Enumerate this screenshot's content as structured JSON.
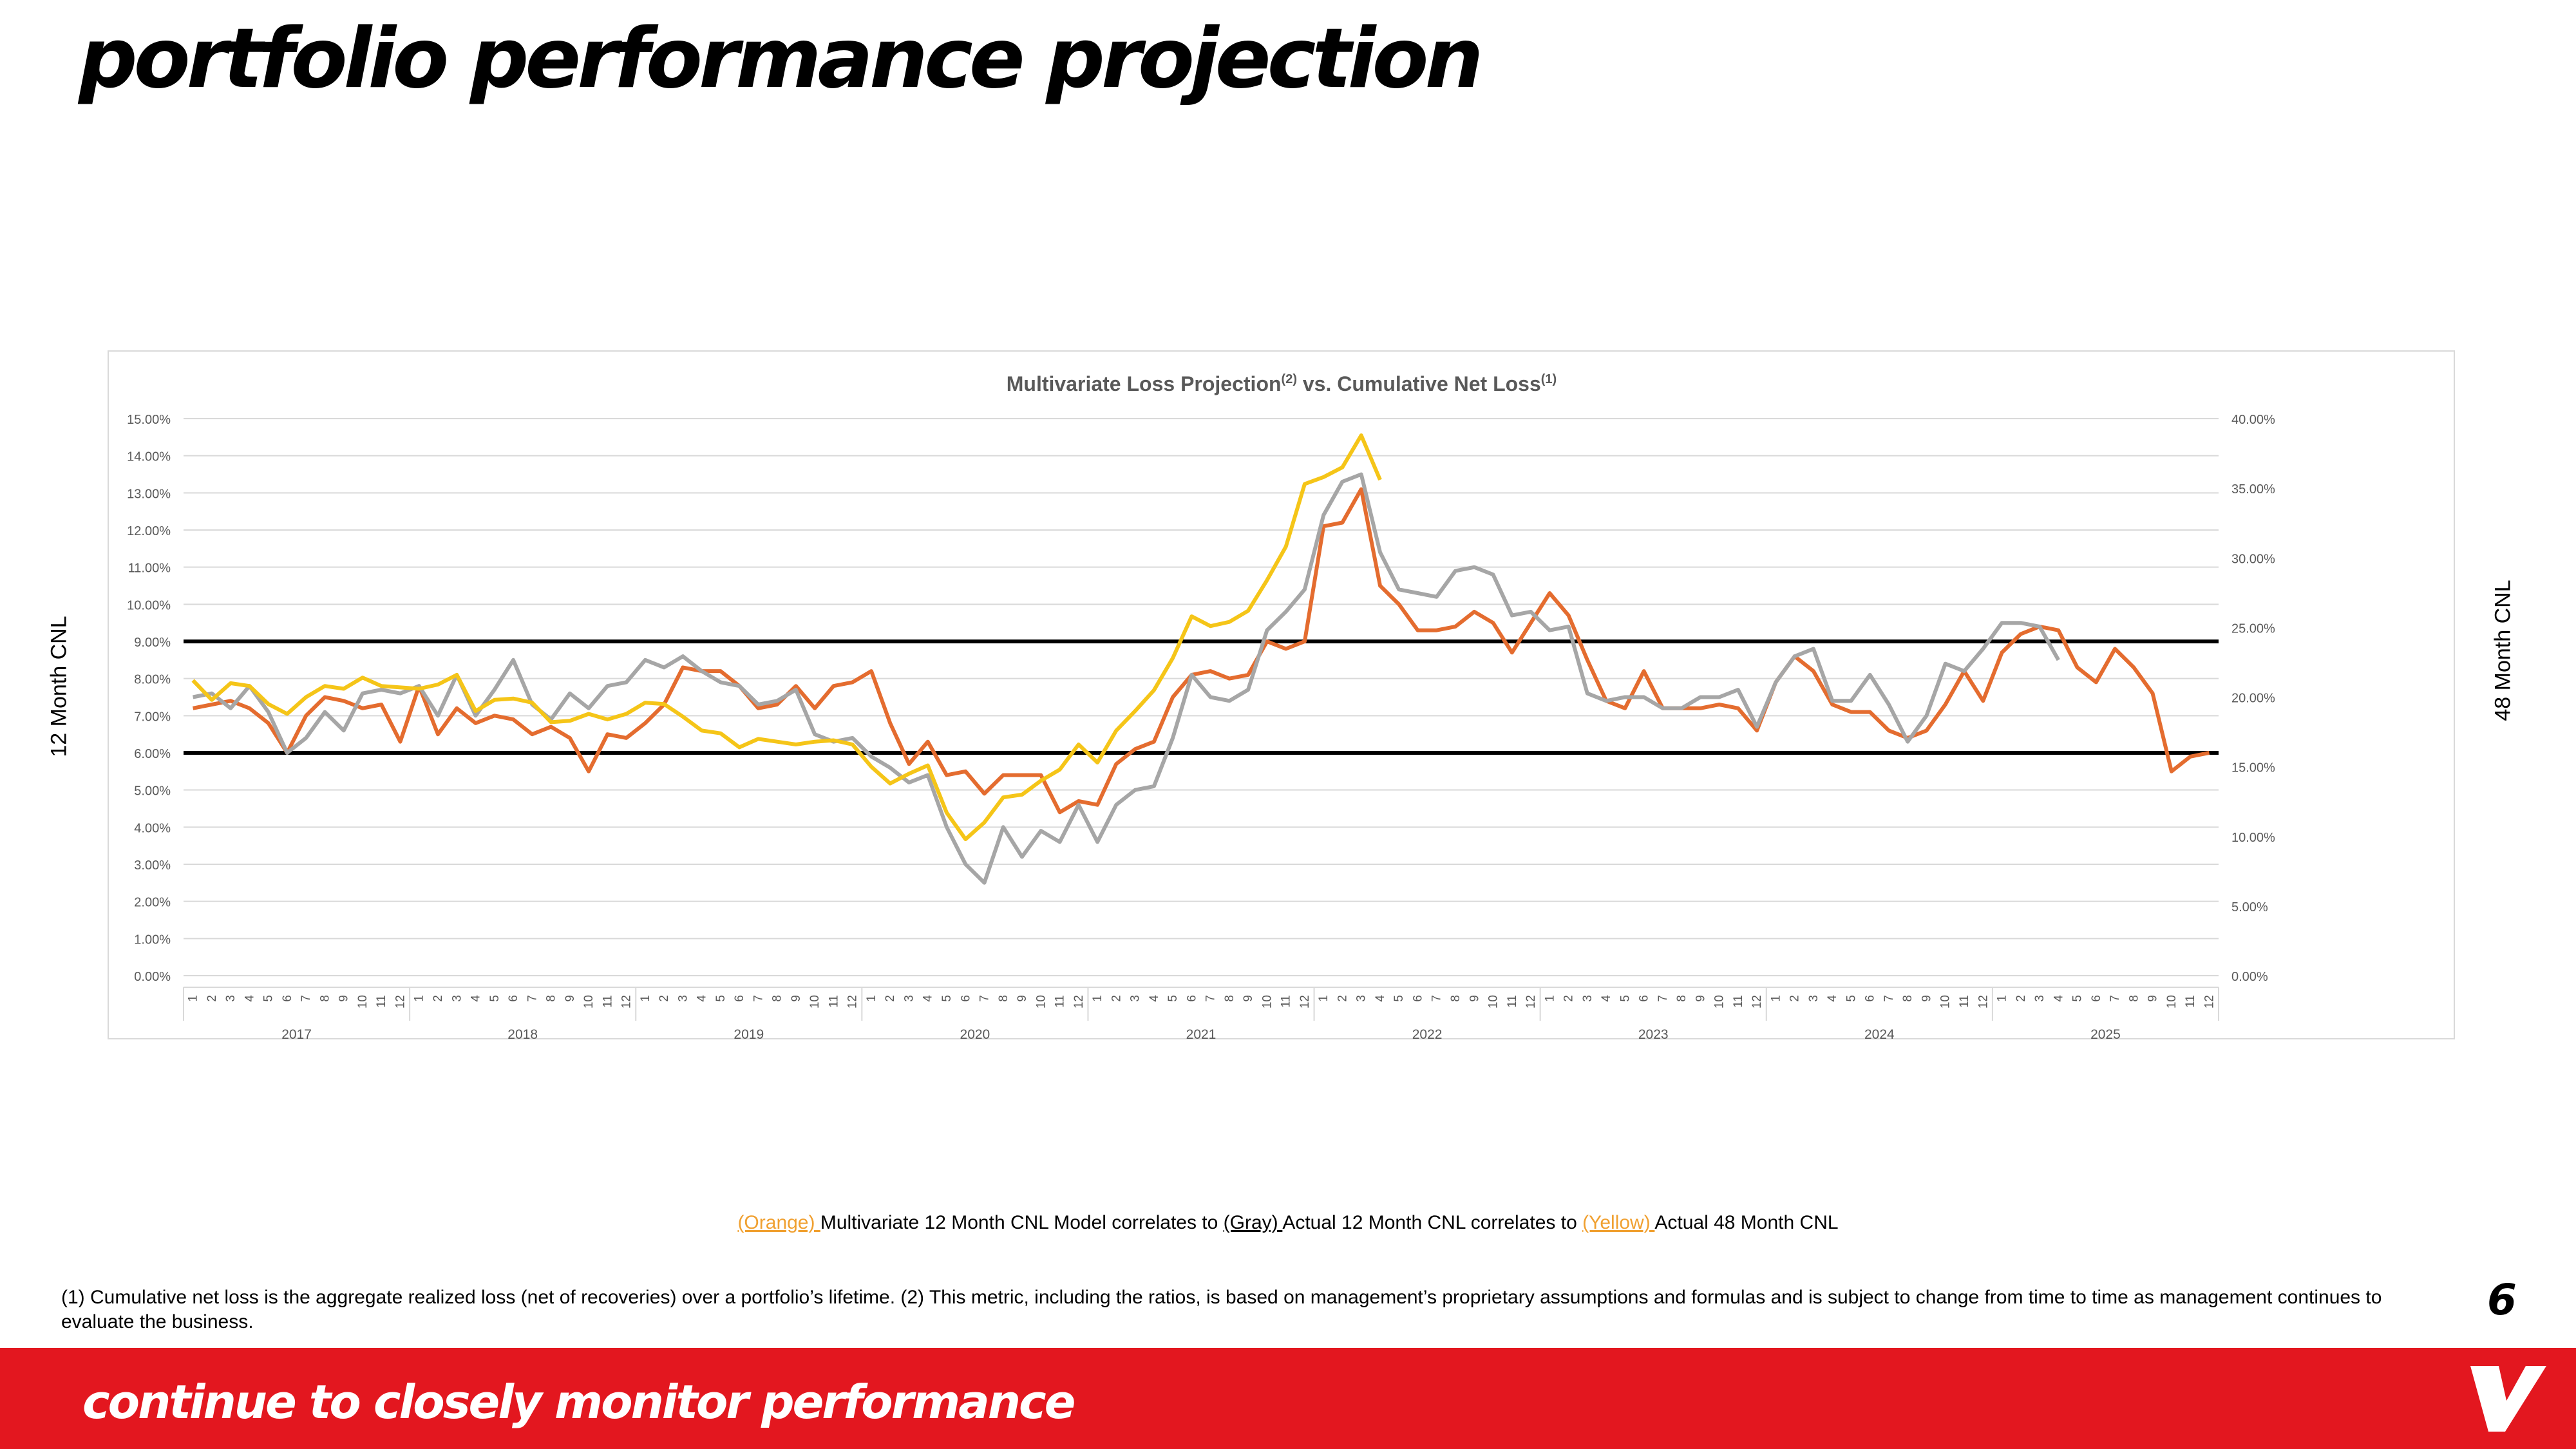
{
  "slide": {
    "title": "portfolio performance projection",
    "left_axis_label": "12 Month CNL",
    "right_axis_label": "48 Month CNL",
    "page_number": "6"
  },
  "legend": {
    "orange_key": "(Orange) ",
    "orange_text": "Multivariate 12 Month CNL Model correlates to ",
    "gray_key": "(Gray) ",
    "gray_text": "Actual 12 Month CNL correlates to ",
    "yellow_key": "(Yellow) ",
    "yellow_text": "Actual 48 Month CNL"
  },
  "footnote": "(1) Cumulative net loss is the aggregate realized loss (net of recoveries) over a portfolio’s lifetime. (2) This metric, including the ratios, is based on management’s proprietary assumptions and formulas and is subject to change from time to time as management continues to evaluate the business.",
  "footer": {
    "tagline": "continue to closely monitor performance",
    "logo_icon": "brand-v-logo"
  },
  "colors": {
    "orange": "#e46c2f",
    "gray": "#a6a6a6",
    "yellow": "#f5c518",
    "brand_red": "#e3171f",
    "orange_text": "#f0a030"
  },
  "chart_data": {
    "type": "line",
    "title": "Multivariate Loss Projection",
    "title_sup1": "(2)",
    "title_mid": " vs. Cumulative Net Loss",
    "title_sup2": "(1)",
    "years": [
      "2017",
      "2018",
      "2019",
      "2020",
      "2021",
      "2022",
      "2023",
      "2024",
      "2025"
    ],
    "months": [
      "1",
      "2",
      "3",
      "4",
      "5",
      "6",
      "7",
      "8",
      "9",
      "10",
      "11",
      "12"
    ],
    "y_left": {
      "ylim": [
        0,
        15
      ],
      "ticks": [
        "0.00%",
        "1.00%",
        "2.00%",
        "3.00%",
        "4.00%",
        "5.00%",
        "6.00%",
        "7.00%",
        "8.00%",
        "9.00%",
        "10.00%",
        "11.00%",
        "12.00%",
        "13.00%",
        "14.00%",
        "15.00%"
      ]
    },
    "y_right": {
      "ylim": [
        0,
        40
      ],
      "ticks": [
        "0.00%",
        "5.00%",
        "10.00%",
        "15.00%",
        "20.00%",
        "25.00%",
        "30.00%",
        "35.00%",
        "40.00%"
      ]
    },
    "reference_lines": [
      9.0,
      6.0
    ],
    "grid": true,
    "series": [
      {
        "color_key": "orange",
        "axis": "left",
        "values": [
          7.2,
          7.3,
          7.4,
          7.2,
          6.8,
          6.0,
          7.0,
          7.5,
          7.4,
          7.2,
          7.3,
          6.3,
          7.8,
          6.5,
          7.2,
          6.8,
          7.0,
          6.9,
          6.5,
          6.7,
          6.4,
          5.5,
          6.5,
          6.4,
          6.8,
          7.3,
          8.3,
          8.2,
          8.2,
          7.8,
          7.2,
          7.3,
          7.8,
          7.2,
          7.8,
          7.9,
          8.2,
          6.8,
          5.7,
          6.3,
          5.4,
          5.5,
          4.9,
          5.4,
          5.4,
          5.4,
          4.4,
          4.7,
          4.6,
          5.7,
          6.1,
          6.3,
          7.5,
          8.1,
          8.2,
          8.0,
          8.1,
          9.0,
          8.8,
          9.0,
          12.1,
          12.2,
          13.1,
          10.5,
          10.0,
          9.3,
          9.3,
          9.4,
          9.8,
          9.5,
          8.7,
          9.5,
          10.3,
          9.7,
          8.5,
          7.4,
          7.2,
          8.2,
          7.2,
          7.2,
          7.2,
          7.3,
          7.2,
          6.6,
          7.9,
          8.6,
          8.2,
          7.3,
          7.1,
          7.1,
          6.6,
          6.4,
          6.6,
          7.3,
          8.2,
          7.4,
          8.7,
          9.2,
          9.4,
          9.3,
          8.3,
          7.9,
          8.8,
          8.3,
          7.6,
          5.5,
          5.9,
          6.0
        ]
      },
      {
        "color_key": "gray",
        "axis": "left",
        "values": [
          7.5,
          7.6,
          7.2,
          7.8,
          7.1,
          6.0,
          6.4,
          7.1,
          6.6,
          7.6,
          7.7,
          7.6,
          7.8,
          7.0,
          8.1,
          7.0,
          7.7,
          8.5,
          7.3,
          6.9,
          7.6,
          7.2,
          7.8,
          7.9,
          8.5,
          8.3,
          8.6,
          8.2,
          7.9,
          7.8,
          7.3,
          7.4,
          7.7,
          6.5,
          6.3,
          6.4,
          5.9,
          5.6,
          5.2,
          5.4,
          4.0,
          3.0,
          2.5,
          4.0,
          3.2,
          3.9,
          3.6,
          4.6,
          3.6,
          4.6,
          5.0,
          5.1,
          6.4,
          8.1,
          7.5,
          7.4,
          7.7,
          9.3,
          9.8,
          10.4,
          12.4,
          13.3,
          13.5,
          11.4,
          10.4,
          10.3,
          10.2,
          10.9,
          11.0,
          10.8,
          9.7,
          9.8,
          9.3,
          9.4,
          7.6,
          7.4,
          7.5,
          7.5,
          7.2,
          7.2,
          7.5,
          7.5,
          7.7,
          6.7,
          7.9,
          8.6,
          8.8,
          7.4,
          7.4,
          8.1,
          7.3,
          6.3,
          7.0,
          8.4,
          8.2,
          8.8,
          9.5,
          9.5,
          9.4,
          8.5
        ]
      },
      {
        "color_key": "yellow",
        "axis": "right",
        "values": [
          21.2,
          19.8,
          21.0,
          20.8,
          19.5,
          18.8,
          20.0,
          20.8,
          20.6,
          21.4,
          20.8,
          20.7,
          20.6,
          20.9,
          21.6,
          19.0,
          19.8,
          19.9,
          19.6,
          18.2,
          18.3,
          18.8,
          18.4,
          18.8,
          19.6,
          19.5,
          18.6,
          17.6,
          17.4,
          16.4,
          17.0,
          16.8,
          16.6,
          16.8,
          16.9,
          16.6,
          15.0,
          13.8,
          14.5,
          15.1,
          11.7,
          9.8,
          11.0,
          12.8,
          13.0,
          14.0,
          14.8,
          16.6,
          15.3,
          17.6,
          19.0,
          20.5,
          22.8,
          25.8,
          25.1,
          25.4,
          26.2,
          28.4,
          30.8,
          35.3,
          35.8,
          36.5,
          38.8,
          35.6
        ]
      }
    ]
  }
}
